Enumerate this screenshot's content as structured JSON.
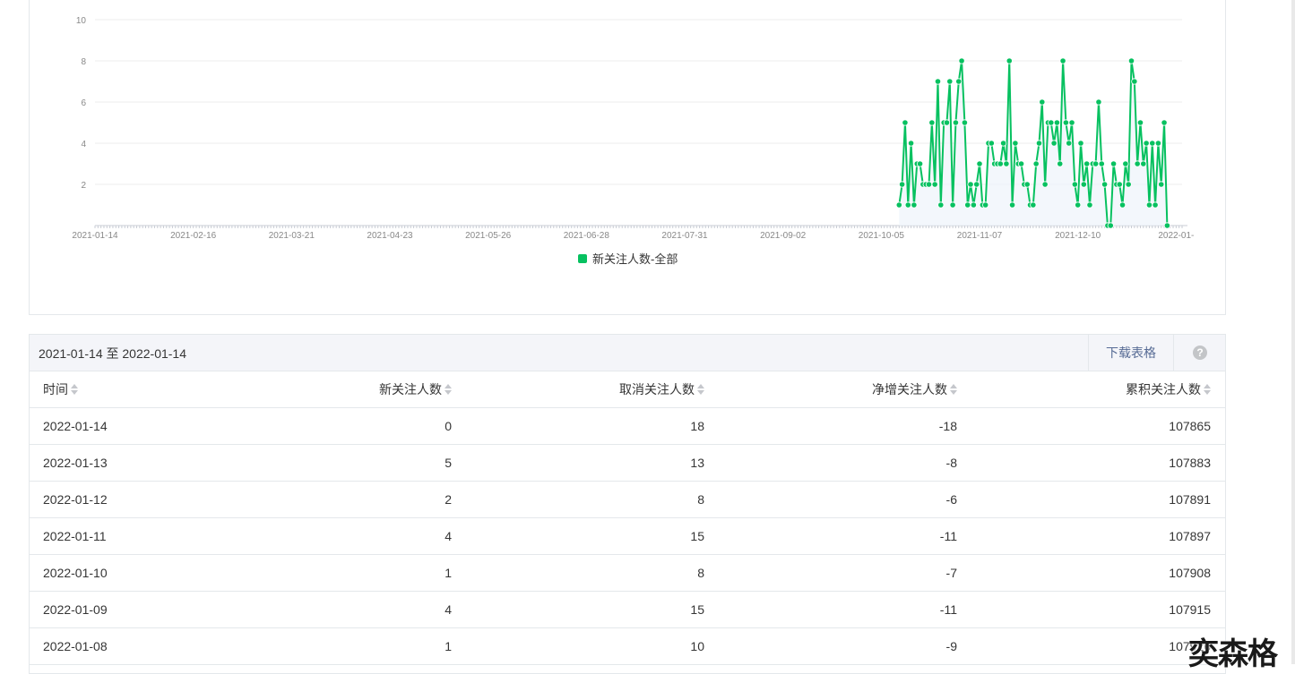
{
  "chart_data": {
    "type": "line",
    "x_ticks": [
      "2021-01-14",
      "2021-02-16",
      "2021-03-21",
      "2021-04-23",
      "2021-05-26",
      "2021-06-28",
      "2021-07-31",
      "2021-09-02",
      "2021-10-05",
      "2021-11-07",
      "2021-12-10",
      "2022-01-"
    ],
    "ylim": [
      0,
      10
    ],
    "y_ticks": [
      "2",
      "4",
      "6",
      "8",
      "10"
    ],
    "grid": true,
    "legend": "bottom",
    "series": [
      {
        "name": "新关注人数-全部",
        "color": "#07c160",
        "start": "2021-10-11",
        "end": "2022-01-14",
        "values": [
          1,
          2,
          5,
          1,
          4,
          1,
          3,
          3,
          2,
          2,
          2,
          5,
          2,
          7,
          1,
          5,
          5,
          7,
          1,
          5,
          7,
          8,
          5,
          1,
          2,
          1,
          2,
          3,
          1,
          1,
          4,
          4,
          3,
          3,
          3,
          4,
          3,
          8,
          1,
          4,
          3,
          3,
          2,
          2,
          1,
          1,
          3,
          4,
          6,
          2,
          5,
          5,
          4,
          5,
          3,
          8,
          5,
          4,
          5,
          2,
          1,
          4,
          2,
          3,
          1,
          3,
          3,
          6,
          3,
          2,
          0,
          0,
          3,
          2,
          2,
          1,
          3,
          2,
          8,
          7,
          3,
          5,
          3,
          4,
          1,
          4,
          1,
          4,
          2,
          5,
          0
        ]
      }
    ]
  },
  "table": {
    "date_range": "2021-01-14 至 2022-01-14",
    "download_label": "下载表格",
    "help_glyph": "?",
    "columns": [
      "时间",
      "新关注人数",
      "取消关注人数",
      "净增关注人数",
      "累积关注人数"
    ],
    "rows": [
      [
        "2022-01-14",
        "0",
        "18",
        "-18",
        "107865"
      ],
      [
        "2022-01-13",
        "5",
        "13",
        "-8",
        "107883"
      ],
      [
        "2022-01-12",
        "2",
        "8",
        "-6",
        "107891"
      ],
      [
        "2022-01-11",
        "4",
        "15",
        "-11",
        "107897"
      ],
      [
        "2022-01-10",
        "1",
        "8",
        "-7",
        "107908"
      ],
      [
        "2022-01-09",
        "4",
        "15",
        "-11",
        "107915"
      ],
      [
        "2022-01-08",
        "1",
        "10",
        "-9",
        "107926"
      ]
    ]
  },
  "watermark": "奕森格"
}
